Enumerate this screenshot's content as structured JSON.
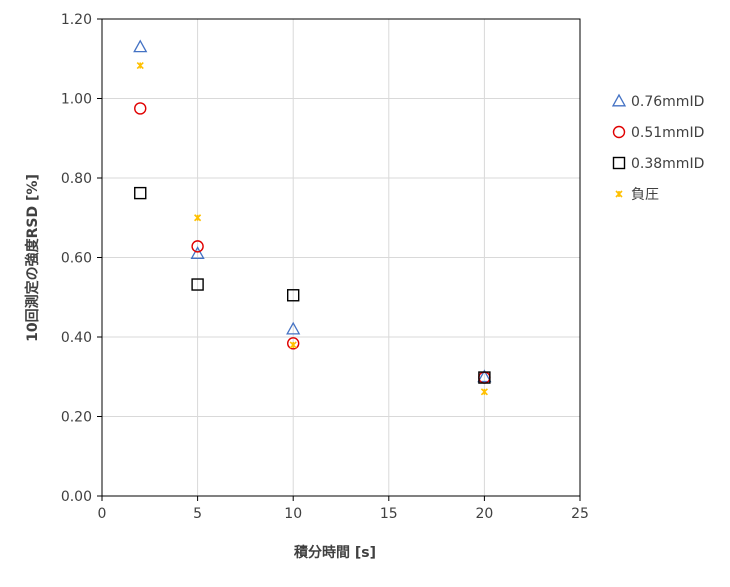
{
  "chart_data": {
    "type": "scatter",
    "title": "",
    "xlabel": "積分時間 [s]",
    "ylabel": "10回測定の強度RSD [%]",
    "xlim": [
      0,
      25
    ],
    "ylim": [
      0.0,
      1.2
    ],
    "x_ticks": [
      0,
      5,
      10,
      15,
      20,
      25
    ],
    "x_tick_labels": [
      "0",
      "5",
      "10",
      "15",
      "20",
      "25"
    ],
    "y_ticks": [
      0.0,
      0.2,
      0.4,
      0.6,
      0.8,
      1.0,
      1.2
    ],
    "y_tick_labels": [
      "0.00",
      "0.20",
      "0.40",
      "0.60",
      "0.80",
      "1.00",
      "1.20"
    ],
    "grid": true,
    "legend_position": "right",
    "series": [
      {
        "name": "0.76mmID",
        "marker": "triangle",
        "color": "#4472C4",
        "x": [
          2,
          5,
          10,
          20
        ],
        "y": [
          1.13,
          0.61,
          0.42,
          0.3
        ]
      },
      {
        "name": "0.51mmID",
        "marker": "circle",
        "color": "#E00000",
        "x": [
          2,
          5,
          10,
          20
        ],
        "y": [
          0.975,
          0.628,
          0.384,
          0.298
        ]
      },
      {
        "name": "0.38mmID",
        "marker": "square",
        "color": "#000000",
        "x": [
          2,
          5,
          10,
          20
        ],
        "y": [
          0.762,
          0.532,
          0.505,
          0.298
        ]
      },
      {
        "name": "負圧",
        "marker": "star",
        "color": "#FFC000",
        "x": [
          2,
          5,
          10,
          20
        ],
        "y": [
          1.083,
          0.7,
          0.38,
          0.262
        ]
      }
    ]
  }
}
